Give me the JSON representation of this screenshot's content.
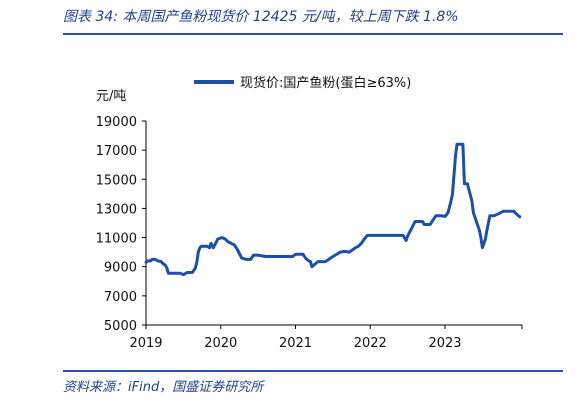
{
  "caption": "图表 34:  本周国产鱼粉现货价 12425 元/吨，较上周下跌 1.8%",
  "source": "资料来源：iFind，国盛证券研究所",
  "chart_data": {
    "type": "line",
    "title": "",
    "ylabel": "元/吨",
    "xlabel": "",
    "ylim": [
      5000,
      19000
    ],
    "yticks": [
      5000,
      7000,
      9000,
      11000,
      13000,
      15000,
      17000,
      19000
    ],
    "xticks": [
      "2019",
      "2020",
      "2021",
      "2022",
      "2023"
    ],
    "xlim": [
      2019.0,
      2024.03
    ],
    "legend_position": "top",
    "grid": false,
    "series": [
      {
        "name": "现货价:国产鱼粉(蛋白≥63%)",
        "color": "#1e4fa8",
        "x": [
          2019.0,
          2019.02,
          2019.06,
          2019.08,
          2019.12,
          2019.16,
          2019.2,
          2019.23,
          2019.26,
          2019.28,
          2019.3,
          2019.34,
          2019.38,
          2019.42,
          2019.46,
          2019.5,
          2019.55,
          2019.62,
          2019.66,
          2019.68,
          2019.7,
          2019.72,
          2019.74,
          2019.78,
          2019.82,
          2019.85,
          2019.87,
          2019.9,
          2019.96,
          2020.02,
          2020.06,
          2020.1,
          2020.14,
          2020.18,
          2020.22,
          2020.25,
          2020.28,
          2020.34,
          2020.4,
          2020.44,
          2020.5,
          2020.6,
          2020.7,
          2020.8,
          2020.9,
          2020.96,
          2021.0,
          2021.1,
          2021.14,
          2021.18,
          2021.2,
          2021.22,
          2021.3,
          2021.4,
          2021.5,
          2021.6,
          2021.66,
          2021.72,
          2021.8,
          2021.84,
          2021.88,
          2021.92,
          2021.96,
          2022.0,
          2022.2,
          2022.3,
          2022.4,
          2022.44,
          2022.48,
          2022.5,
          2022.52,
          2022.6,
          2022.7,
          2022.72,
          2022.8,
          2022.84,
          2022.88,
          2022.94,
          2023.0,
          2023.04,
          2023.08,
          2023.1,
          2023.12,
          2023.14,
          2023.16,
          2023.2,
          2023.24,
          2023.26,
          2023.3,
          2023.36,
          2023.38,
          2023.4,
          2023.46,
          2023.48,
          2023.5,
          2023.52,
          2023.54,
          2023.56,
          2023.58,
          2023.6,
          2023.62,
          2023.64,
          2023.66,
          2023.7,
          2023.74,
          2023.78,
          2023.82,
          2023.88,
          2023.92,
          2023.94,
          2023.96,
          2023.98,
          2024.0
        ],
        "values": [
          9300,
          9400,
          9400,
          9500,
          9500,
          9400,
          9350,
          9200,
          9100,
          8900,
          8550,
          8550,
          8550,
          8550,
          8550,
          8450,
          8600,
          8600,
          8900,
          9300,
          10000,
          10300,
          10400,
          10400,
          10400,
          10300,
          10600,
          10300,
          10900,
          11000,
          10900,
          10700,
          10600,
          10500,
          10200,
          9900,
          9600,
          9500,
          9500,
          9800,
          9800,
          9700,
          9700,
          9700,
          9700,
          9700,
          9850,
          9850,
          9550,
          9400,
          9350,
          9000,
          9350,
          9350,
          9700,
          10000,
          10050,
          10000,
          10300,
          10400,
          10600,
          10900,
          11150,
          11150,
          11150,
          11150,
          11150,
          11150,
          10800,
          11100,
          11300,
          12100,
          12100,
          11900,
          11900,
          12200,
          12500,
          12500,
          12450,
          12700,
          13500,
          14000,
          15300,
          16600,
          17400,
          17400,
          17400,
          14700,
          14700,
          13500,
          12700,
          12400,
          11500,
          11000,
          10300,
          10600,
          10900,
          11500,
          12000,
          12500,
          12500,
          12500,
          12500,
          12600,
          12700,
          12800,
          12800,
          12800,
          12800,
          12700,
          12600,
          12500,
          12425
        ]
      }
    ]
  }
}
